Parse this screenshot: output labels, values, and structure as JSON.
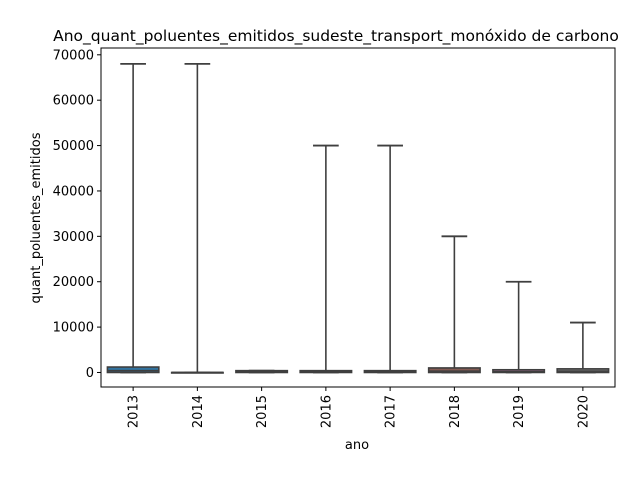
{
  "chart_data": {
    "type": "box",
    "title": "Ano_quant_poluentes_emitidos_sudeste_transport_monóxido de carbono",
    "xlabel": "ano",
    "ylabel": "quant_poluentes_emitidos",
    "categories": [
      "2013",
      "2014",
      "2015",
      "2016",
      "2017",
      "2018",
      "2019",
      "2020"
    ],
    "ylim": [
      -3200,
      71500
    ],
    "yticks": [
      0,
      10000,
      20000,
      30000,
      40000,
      50000,
      60000,
      70000
    ],
    "grid": false,
    "boxes": [
      {
        "category": "2013",
        "whisker_low": 0,
        "q1": 0,
        "median": 400,
        "q3": 1200,
        "whisker_high": 68000,
        "color": "#3274a1"
      },
      {
        "category": "2014",
        "whisker_low": 0,
        "q1": 0,
        "median": 0,
        "q3": 0,
        "whisker_high": 68000,
        "color": "#e1812c"
      },
      {
        "category": "2015",
        "whisker_low": 0,
        "q1": 0,
        "median": 150,
        "q3": 400,
        "whisker_high": 400,
        "color": "#3a923a"
      },
      {
        "category": "2016",
        "whisker_low": 0,
        "q1": 0,
        "median": 150,
        "q3": 400,
        "whisker_high": 50000,
        "color": "#c03d3e"
      },
      {
        "category": "2017",
        "whisker_low": 0,
        "q1": 0,
        "median": 150,
        "q3": 400,
        "whisker_high": 50000,
        "color": "#9372b2"
      },
      {
        "category": "2018",
        "whisker_low": 0,
        "q1": 0,
        "median": 300,
        "q3": 1000,
        "whisker_high": 30000,
        "color": "#845b53"
      },
      {
        "category": "2019",
        "whisker_low": 0,
        "q1": 0,
        "median": 200,
        "q3": 600,
        "whisker_high": 20000,
        "color": "#d684bd"
      },
      {
        "category": "2020",
        "whisker_low": 0,
        "q1": 0,
        "median": 300,
        "q3": 800,
        "whisker_high": 11000,
        "color": "#7f7f7f"
      }
    ]
  }
}
